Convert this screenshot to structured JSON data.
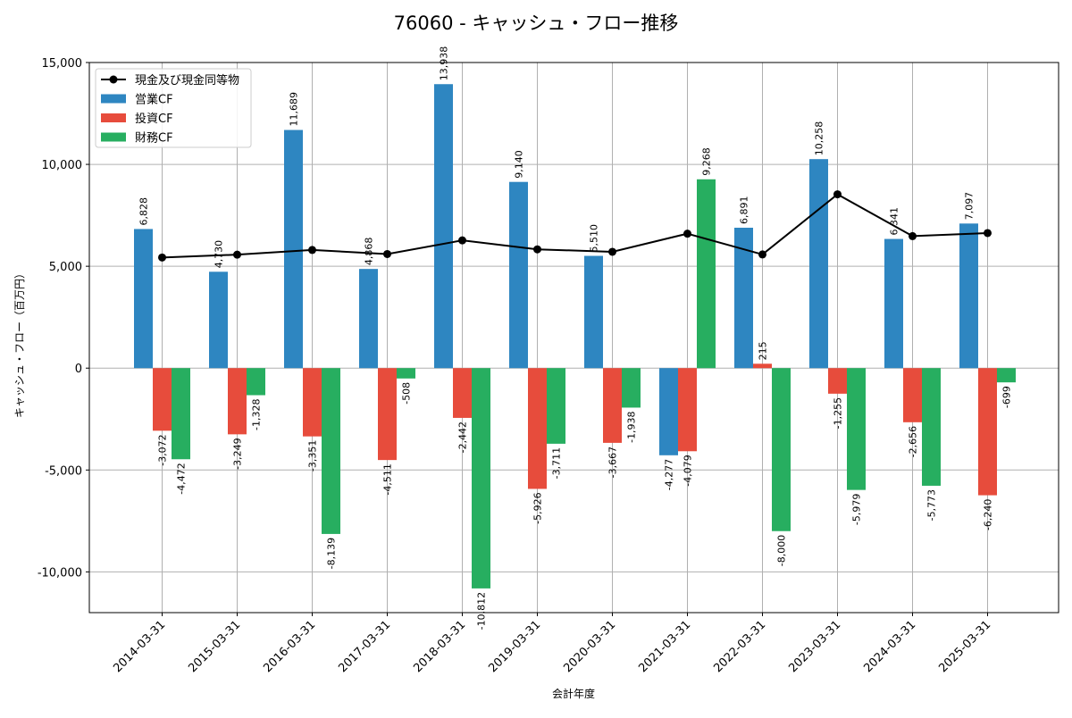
{
  "chart_data": {
    "type": "bar",
    "title": "76060 - キャッシュ・フロー推移",
    "xlabel": "会計年度",
    "ylabel": "キャッシュ・フロー（百万円）",
    "ylim": [
      -12000,
      15000
    ],
    "yticks": [
      -10000,
      -5000,
      0,
      5000,
      10000,
      15000
    ],
    "ytick_labels": [
      "-10,000",
      "-5,000",
      "0",
      "5,000",
      "10,000",
      "15,000"
    ],
    "grid": true,
    "legend_position": "top-left",
    "categories": [
      "2014-03-31",
      "2015-03-31",
      "2016-03-31",
      "2017-03-31",
      "2018-03-31",
      "2019-03-31",
      "2020-03-31",
      "2021-03-31",
      "2022-03-31",
      "2023-03-31",
      "2024-03-31",
      "2025-03-31"
    ],
    "series": [
      {
        "name": "営業CF",
        "kind": "bar",
        "color": "#2e86c1",
        "values": [
          6828,
          4730,
          11689,
          4868,
          13938,
          9140,
          5510,
          -4277,
          6891,
          10258,
          6341,
          7097
        ],
        "labels": [
          "6,828",
          "4,730",
          "11,689",
          "4,868",
          "13,938",
          "9,140",
          "5,510",
          "-4,277",
          "6,891",
          "10,258",
          "6,341",
          "7,097"
        ]
      },
      {
        "name": "投資CF",
        "kind": "bar",
        "color": "#e74c3c",
        "values": [
          -3072,
          -3249,
          -3351,
          -4511,
          -2442,
          -5926,
          -3667,
          -4079,
          215,
          -1255,
          -2656,
          -6240
        ],
        "labels": [
          "-3,072",
          "-3,249",
          "-3,351",
          "-4,511",
          "-2,442",
          "-5,926",
          "-3,667",
          "-4,079",
          "215",
          "-1,255",
          "-2,656",
          "-6,240"
        ]
      },
      {
        "name": "財務CF",
        "kind": "bar",
        "color": "#27ae60",
        "values": [
          -4472,
          -1328,
          -8139,
          -508,
          -10812,
          -3711,
          -1938,
          9268,
          -8000,
          -5979,
          -5773,
          -699
        ],
        "labels": [
          "-4,472",
          "-1,328",
          "-8,139",
          "-508",
          "-10,812",
          "-3,711",
          "-1,938",
          "9,268",
          "-8,000",
          "-5,979",
          "-5,773",
          "-699"
        ]
      },
      {
        "name": "現金及び現金同等物",
        "kind": "line",
        "color": "#000000",
        "values": [
          5430,
          5570,
          5800,
          5600,
          6270,
          5830,
          5710,
          6600,
          5580,
          8530,
          6480,
          6630
        ]
      }
    ]
  }
}
